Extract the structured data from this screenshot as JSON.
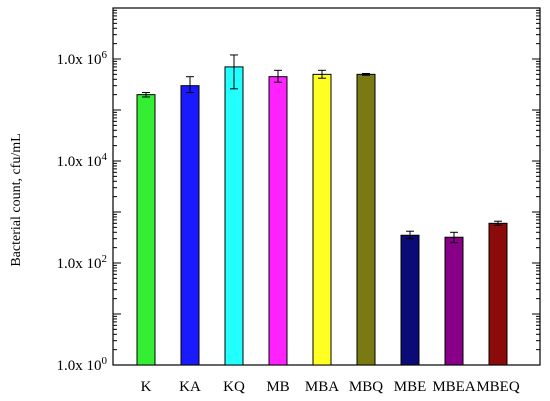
{
  "chart_data": {
    "type": "bar",
    "title": "",
    "xlabel": "",
    "ylabel": "Bacterial count, cfu/mL",
    "yscale": "log",
    "ylim": [
      1,
      10000000
    ],
    "yticks": [
      {
        "value": 1,
        "label": "1.0x 10",
        "exp": "0"
      },
      {
        "value": 100,
        "label": "1.0x 10",
        "exp": "2"
      },
      {
        "value": 10000,
        "label": "1.0x 10",
        "exp": "4"
      },
      {
        "value": 1000000,
        "label": "1.0x 10",
        "exp": "6"
      }
    ],
    "grid": false,
    "error_bars": true,
    "categories": [
      "K",
      "KA",
      "KQ",
      "MB",
      "MBA",
      "MBQ",
      "MBE",
      "MBEA",
      "MBEQ"
    ],
    "values": [
      200000,
      300000,
      700000,
      450000,
      500000,
      500000,
      350,
      320,
      600
    ],
    "errors_low": [
      180000,
      220000,
      260000,
      350000,
      420000,
      480000,
      300,
      250,
      550
    ],
    "errors_high": [
      220000,
      450000,
      1200000,
      600000,
      600000,
      520000,
      420,
      400,
      660
    ],
    "colors": [
      "#33ee33",
      "#1a1aff",
      "#22ffff",
      "#ff22ff",
      "#ffff22",
      "#7a7a12",
      "#0b0b78",
      "#880088",
      "#8b0a0a"
    ]
  }
}
